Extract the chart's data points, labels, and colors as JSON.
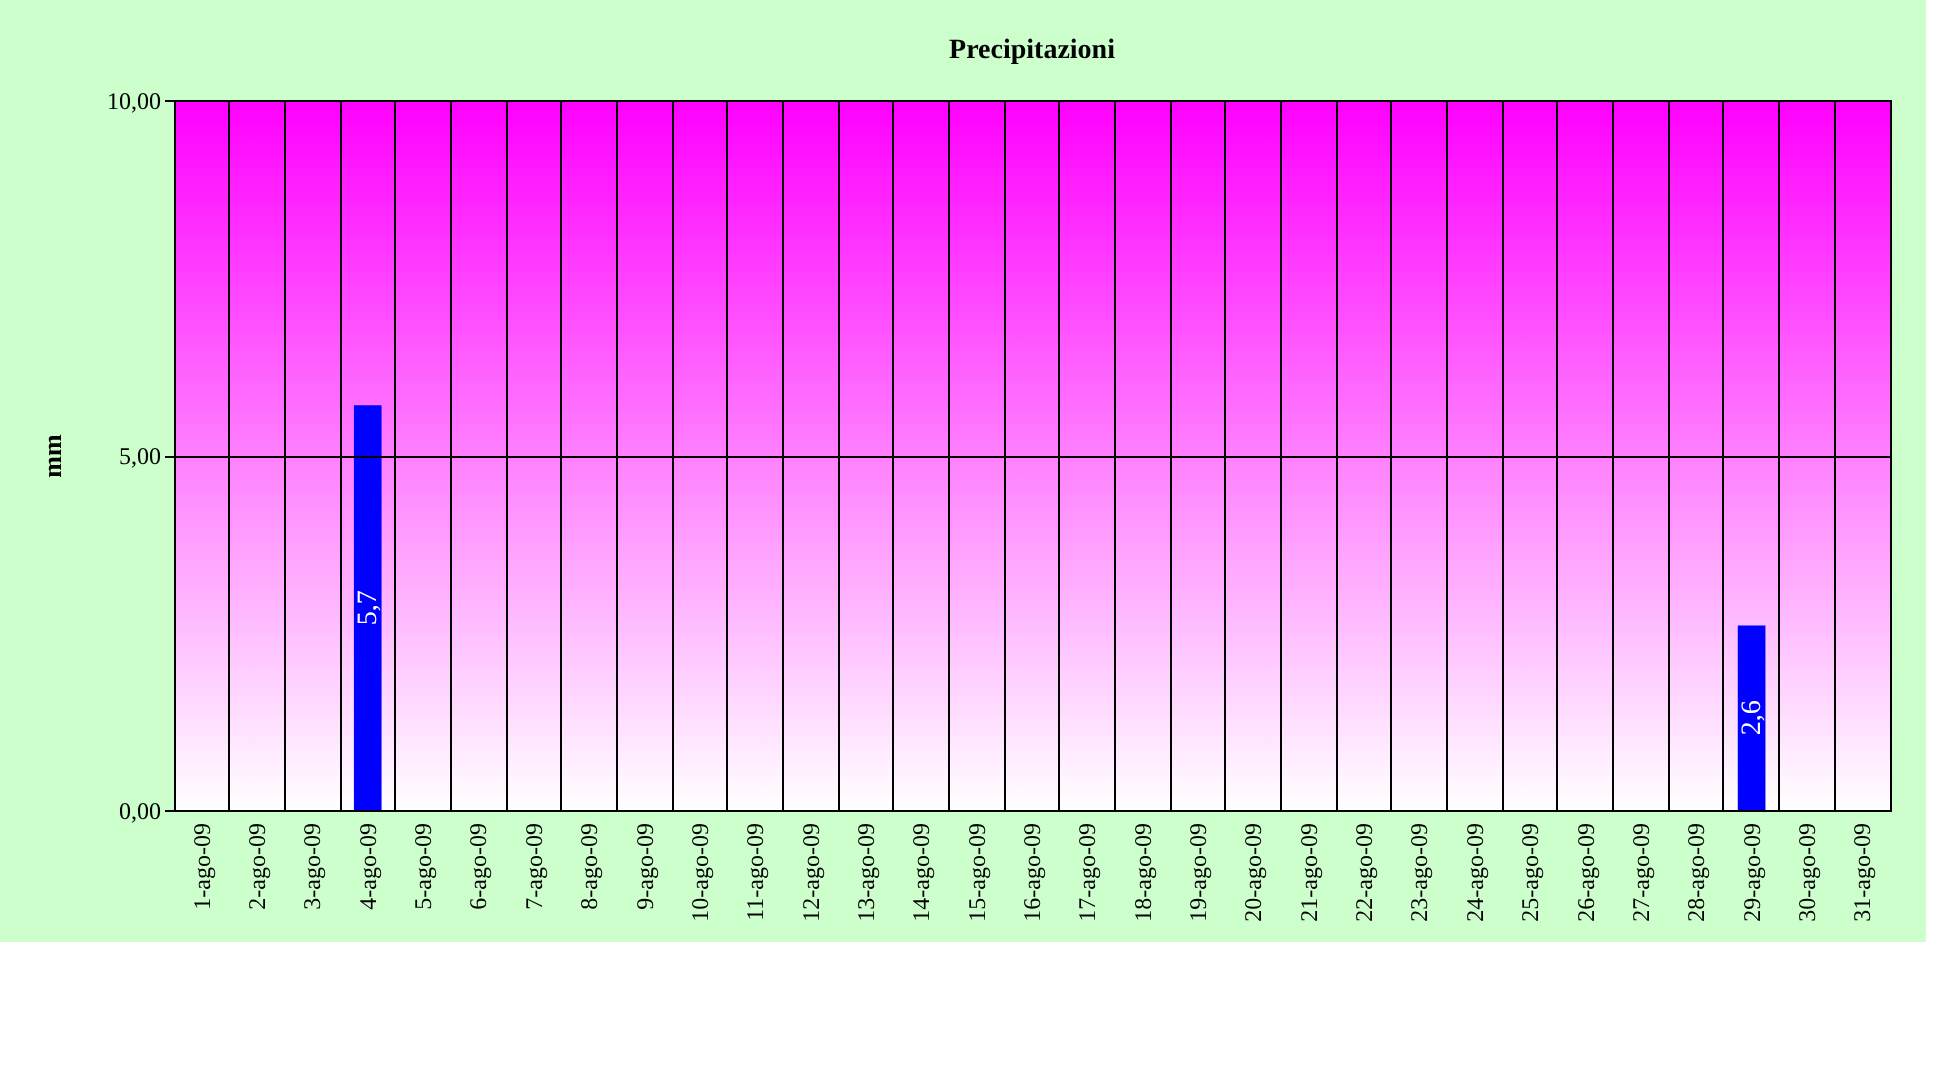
{
  "chart_data": {
    "type": "bar",
    "title": "Precipitazioni",
    "ylabel": "mm",
    "categories": [
      "1-ago-09",
      "2-ago-09",
      "3-ago-09",
      "4-ago-09",
      "5-ago-09",
      "6-ago-09",
      "7-ago-09",
      "8-ago-09",
      "9-ago-09",
      "10-ago-09",
      "11-ago-09",
      "12-ago-09",
      "13-ago-09",
      "14-ago-09",
      "15-ago-09",
      "16-ago-09",
      "17-ago-09",
      "18-ago-09",
      "19-ago-09",
      "20-ago-09",
      "21-ago-09",
      "22-ago-09",
      "23-ago-09",
      "24-ago-09",
      "25-ago-09",
      "26-ago-09",
      "27-ago-09",
      "28-ago-09",
      "29-ago-09",
      "30-ago-09",
      "31-ago-09"
    ],
    "values": [
      null,
      null,
      null,
      5.7,
      null,
      null,
      null,
      null,
      null,
      null,
      null,
      null,
      null,
      null,
      null,
      null,
      null,
      null,
      null,
      null,
      null,
      null,
      null,
      null,
      null,
      null,
      null,
      null,
      2.6,
      null,
      null
    ],
    "value_labels": [
      null,
      null,
      null,
      "5,7",
      null,
      null,
      null,
      null,
      null,
      null,
      null,
      null,
      null,
      null,
      null,
      null,
      null,
      null,
      null,
      null,
      null,
      null,
      null,
      null,
      null,
      null,
      null,
      null,
      "2,6",
      null,
      null
    ],
    "color": "#0000ff",
    "ylim": [
      0,
      10
    ],
    "yticks": [
      {
        "value": 0,
        "label": "0,00"
      },
      {
        "value": 5,
        "label": "5,00"
      },
      {
        "value": 10,
        "label": "10,00"
      }
    ],
    "grid": true
  }
}
